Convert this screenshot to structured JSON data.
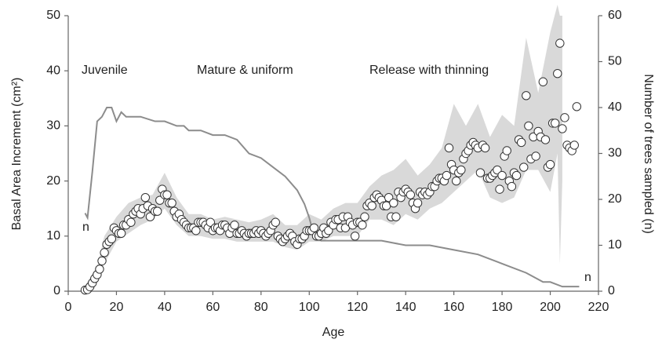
{
  "chart_data": {
    "type": "scatter",
    "title_y": "Basal Area Increment (cm²)",
    "title_y2": "Number of trees sampled (n)",
    "title_x": "Age",
    "xlim": [
      0,
      220
    ],
    "xticks": [
      0,
      20,
      40,
      60,
      80,
      100,
      120,
      140,
      160,
      180,
      200,
      220
    ],
    "ylim": [
      0,
      50
    ],
    "yticks": [
      0,
      10,
      20,
      30,
      40,
      50
    ],
    "y2lim": [
      0,
      60
    ],
    "y2ticks": [
      0,
      10,
      20,
      30,
      40,
      50,
      60
    ],
    "annotations": [
      "Juvenile",
      "Mature & uniform",
      "Release with thinning",
      "n",
      "n"
    ],
    "points": {
      "color": "#ffffff",
      "edge_color": "#333333",
      "x": [
        7,
        8,
        9,
        10,
        11,
        12,
        13,
        14,
        15,
        16,
        17,
        18,
        19,
        20,
        21,
        22,
        23,
        24,
        25,
        26,
        27,
        28,
        29,
        30,
        31,
        32,
        33,
        34,
        35,
        36,
        37,
        38,
        39,
        40,
        41,
        42,
        43,
        44,
        45,
        46,
        47,
        48,
        49,
        50,
        51,
        52,
        53,
        54,
        55,
        56,
        57,
        58,
        59,
        60,
        61,
        62,
        63,
        64,
        65,
        66,
        67,
        68,
        69,
        70,
        71,
        72,
        73,
        74,
        75,
        76,
        77,
        78,
        79,
        80,
        81,
        82,
        83,
        84,
        85,
        86,
        87,
        88,
        89,
        90,
        91,
        92,
        93,
        94,
        95,
        96,
        97,
        98,
        99,
        100,
        101,
        102,
        103,
        104,
        105,
        106,
        107,
        108,
        109,
        110,
        111,
        112,
        113,
        114,
        115,
        116,
        117,
        118,
        119,
        120,
        121,
        122,
        123,
        124,
        125,
        126,
        127,
        128,
        129,
        130,
        131,
        132,
        133,
        134,
        135,
        136,
        137,
        138,
        139,
        140,
        141,
        142,
        143,
        144,
        145,
        146,
        147,
        148,
        149,
        150,
        151,
        152,
        153,
        154,
        155,
        156,
        157,
        158,
        159,
        160,
        161,
        162,
        163,
        164,
        165,
        166,
        167,
        168,
        169,
        170,
        171,
        172,
        173,
        174,
        175,
        176,
        177,
        178,
        179,
        180,
        181,
        182,
        183,
        184,
        185,
        186,
        187,
        188,
        189,
        190,
        191,
        192,
        193,
        194,
        195,
        196,
        197,
        198,
        199,
        200,
        201,
        202,
        203,
        204,
        205,
        206,
        207,
        208,
        209,
        210,
        211
      ],
      "values": [
        0.2,
        0.3,
        0.8,
        1.5,
        2.3,
        3,
        4,
        5.5,
        7,
        8.5,
        9,
        9.5,
        11.5,
        11,
        10.5,
        10.5,
        12,
        12,
        13,
        12.5,
        14,
        14.5,
        15,
        14,
        15,
        17,
        15.5,
        13.5,
        15,
        14.5,
        14.5,
        16.5,
        18.5,
        17.5,
        17.5,
        16,
        16,
        14.5,
        13.5,
        14,
        13,
        12.5,
        12,
        11.5,
        11.5,
        11.5,
        11,
        12.5,
        12.5,
        12.5,
        12,
        11.5,
        12.5,
        11,
        11.5,
        11.5,
        11,
        12,
        12,
        11.5,
        10.5,
        11.5,
        12,
        10.5,
        10.5,
        11,
        10.5,
        10,
        10.5,
        10.5,
        10.5,
        11,
        10.5,
        11,
        10.5,
        10,
        10.5,
        11,
        12,
        12.5,
        10,
        9.5,
        9,
        9.5,
        10,
        10.5,
        10,
        9,
        8.5,
        9.5,
        9.5,
        10,
        11,
        11,
        11,
        11.5,
        10,
        10,
        10.5,
        11.5,
        10.5,
        11,
        12.5,
        12,
        13,
        13,
        11.5,
        13.5,
        11.5,
        13.5,
        12.5,
        12,
        10,
        12.5,
        12.5,
        12,
        13.5,
        15.5,
        16,
        15.5,
        17,
        17.5,
        17,
        16.5,
        15.5,
        15.5,
        17,
        13.5,
        16,
        13.5,
        18,
        17,
        18,
        18.5,
        18,
        17.5,
        16,
        15,
        16,
        18,
        17.5,
        18,
        17.5,
        18,
        19,
        19,
        20,
        20.5,
        20.5,
        20,
        21,
        26,
        23,
        22,
        20,
        21.5,
        22,
        24,
        25,
        25.5,
        26.5,
        27,
        26.5,
        26,
        21.5,
        26.5,
        26,
        20.5,
        20.5,
        21,
        21.5,
        22,
        18.5,
        21,
        24.5,
        25.5,
        20,
        19,
        21.5,
        21,
        27.5,
        27,
        22.5,
        35.5,
        30,
        24,
        28,
        24.5,
        29,
        28,
        38,
        27.5,
        22.5,
        23,
        30.5,
        30.5,
        39.5,
        45,
        29.5,
        31.5,
        26.5,
        26,
        25.5,
        26.5,
        33.5
      ]
    },
    "band": {
      "color": "#d9d9d9",
      "x": [
        7,
        12,
        15,
        20,
        25,
        30,
        35,
        40,
        45,
        50,
        55,
        60,
        65,
        70,
        75,
        80,
        85,
        90,
        95,
        100,
        105,
        110,
        115,
        120,
        125,
        130,
        135,
        140,
        145,
        150,
        155,
        160,
        165,
        170,
        175,
        180,
        185,
        190,
        195,
        200,
        203,
        204,
        205
      ],
      "lower": [
        0,
        2,
        5,
        9,
        10.5,
        12,
        13,
        15,
        12,
        10,
        10,
        9.5,
        9.5,
        9,
        9,
        9,
        9,
        8,
        7.5,
        9,
        9,
        10,
        10,
        10,
        13,
        13,
        12,
        14,
        13,
        15,
        16,
        18,
        20,
        22,
        17,
        16,
        17,
        22,
        22,
        18,
        25,
        5,
        20
      ],
      "upper": [
        1,
        4.5,
        10,
        13.5,
        16,
        17,
        17.5,
        21.5,
        17,
        14,
        14,
        13,
        13.5,
        13,
        12.5,
        13,
        14,
        12,
        12,
        14,
        13,
        15,
        16,
        16,
        19,
        21,
        22,
        24,
        21,
        23,
        26,
        34,
        30,
        34,
        28,
        32,
        30,
        46,
        36,
        47,
        52,
        50,
        50
      ]
    },
    "n_line": {
      "axis": "y2",
      "color": "#8c8c8c",
      "x": [
        7,
        8,
        10,
        12,
        14,
        16,
        18,
        20,
        22,
        24,
        30,
        36,
        40,
        45,
        48,
        50,
        55,
        60,
        65,
        70,
        75,
        80,
        85,
        90,
        95,
        98,
        100,
        102,
        105,
        110,
        120,
        130,
        140,
        150,
        160,
        170,
        180,
        190,
        197,
        200,
        205,
        212
      ],
      "values": [
        17,
        16,
        26,
        37,
        38,
        40,
        40,
        37,
        39,
        38,
        38,
        37,
        37,
        36,
        36,
        35,
        35,
        34,
        34,
        33,
        30,
        29,
        27,
        25,
        22,
        19,
        16,
        12,
        11,
        11,
        11,
        11,
        10,
        10,
        9,
        8,
        6,
        4,
        2,
        2,
        1,
        1
      ]
    }
  }
}
